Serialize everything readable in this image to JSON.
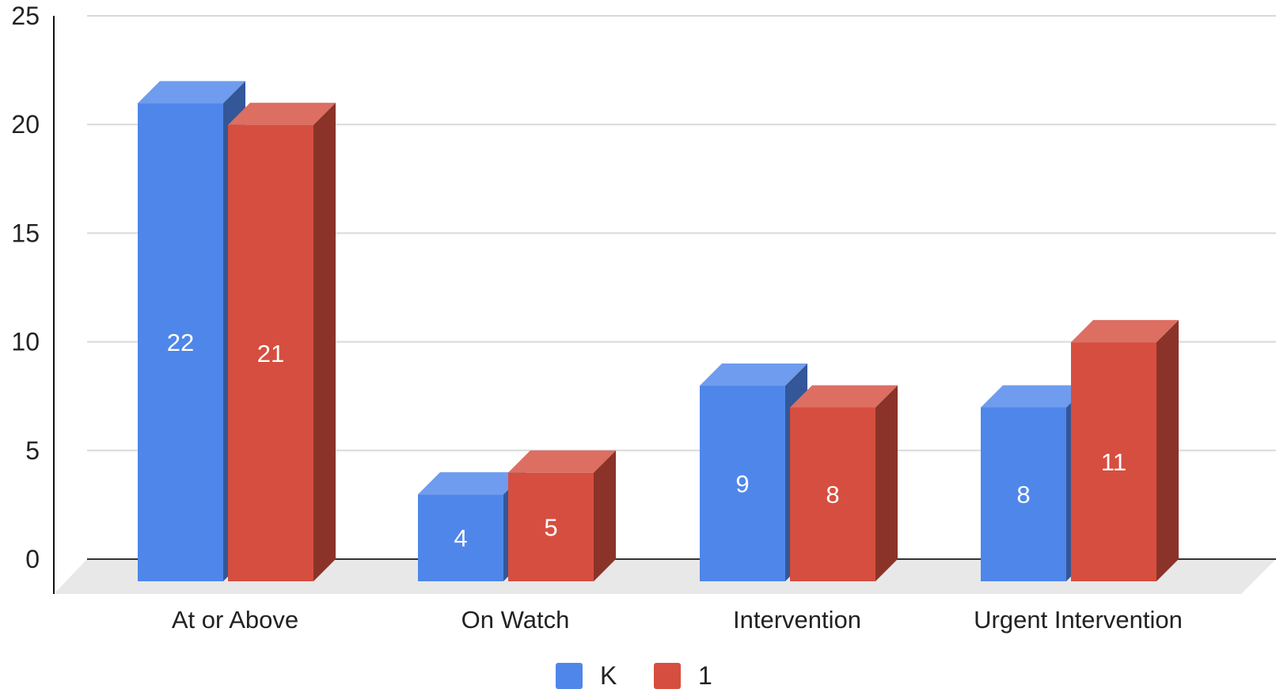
{
  "chart_data": {
    "type": "bar",
    "style": "3d-grouped",
    "categories": [
      "At or Above",
      "On Watch",
      "Intervention",
      "Urgent Intervention"
    ],
    "series": [
      {
        "name": "K",
        "color": "#4f86ea",
        "values": [
          22,
          4,
          9,
          8
        ]
      },
      {
        "name": "1",
        "color": "#d64e3f",
        "values": [
          21,
          5,
          8,
          11
        ]
      }
    ],
    "y_ticks": [
      0,
      5,
      10,
      15,
      20,
      25
    ],
    "ylim": [
      0,
      25
    ],
    "grid": true,
    "legend": "bottom-center",
    "data_labels": true
  }
}
